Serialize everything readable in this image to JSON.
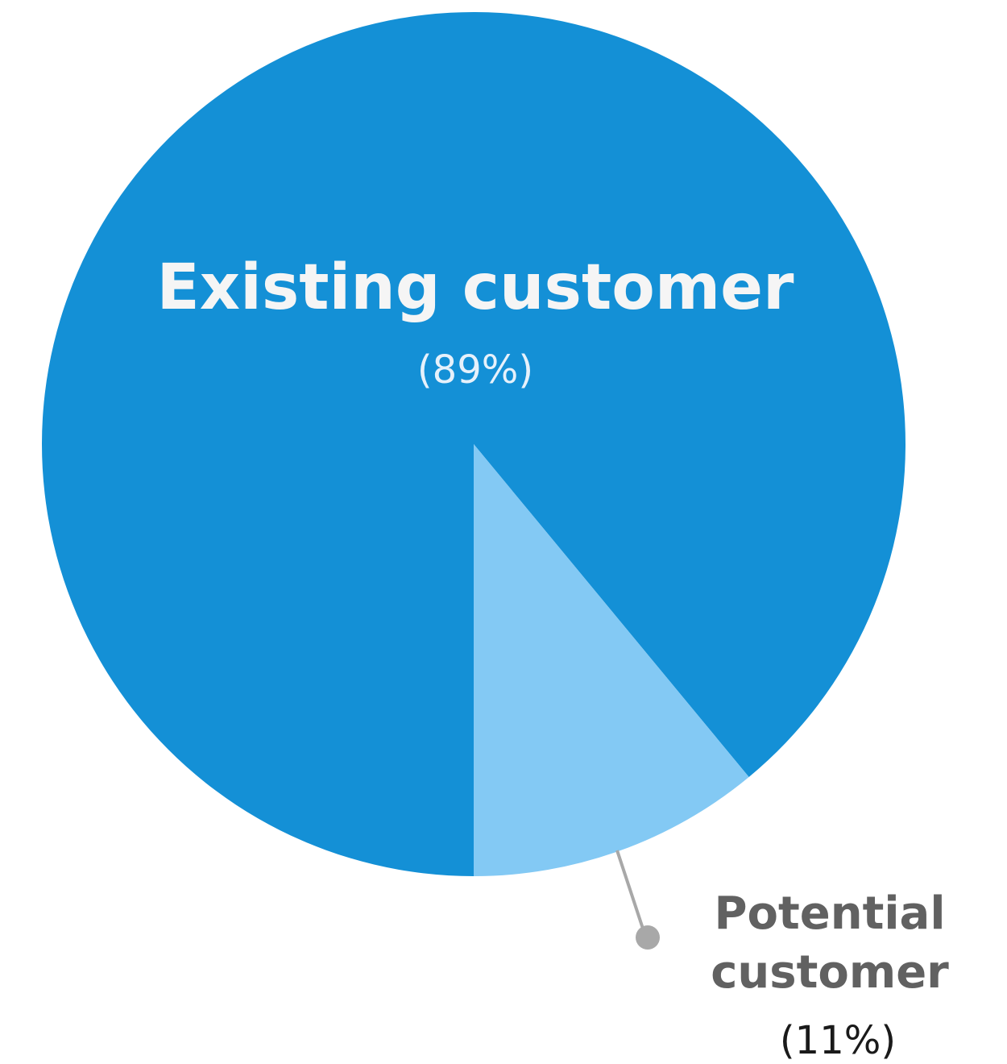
{
  "chart_data": {
    "type": "pie",
    "slices": [
      {
        "label": "Existing customer",
        "percent_label": "(89%)",
        "value": 89,
        "color": "#1490d6"
      },
      {
        "label_lines": [
          "Potential",
          "customer"
        ],
        "percent_label": "(11%)",
        "value": 11,
        "color": "#83c9f4"
      }
    ],
    "start_angle": "12 o'clock, counterclockwise for largest slice",
    "legend": "none",
    "leader_line_color": "#a8a8a8",
    "label_color_outside": "#616161",
    "label_color_inside": "#f5f5f5"
  }
}
